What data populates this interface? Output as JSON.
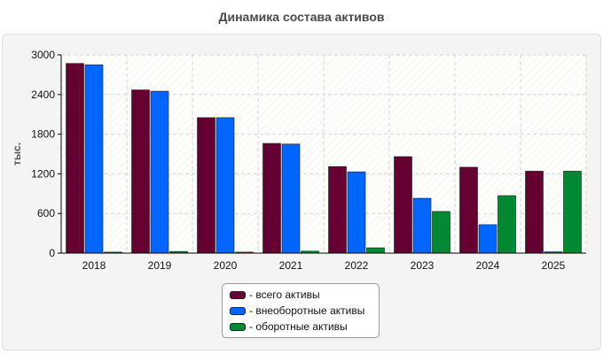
{
  "chart_data": {
    "type": "bar",
    "title": "Динамика состава активов",
    "ylabel": "тыс.",
    "xlabel": "",
    "ylim": [
      0,
      3000
    ],
    "yticks": [
      0,
      600,
      1200,
      1800,
      2400,
      3000
    ],
    "grid": true,
    "legend_position": "bottom-center",
    "categories": [
      "2018",
      "2019",
      "2020",
      "2021",
      "2022",
      "2023",
      "2024",
      "2025"
    ],
    "series": [
      {
        "name": "- всего активы",
        "color": "#660033",
        "values": [
          2870,
          2470,
          2050,
          1660,
          1310,
          1460,
          1300,
          1240
        ]
      },
      {
        "name": "- внеоборотные активы",
        "color": "#0066ff",
        "values": [
          2850,
          2450,
          2050,
          1650,
          1230,
          830,
          430,
          20
        ]
      },
      {
        "name": "- оборотные активы",
        "color": "#008833",
        "values": [
          15,
          25,
          15,
          30,
          80,
          630,
          870,
          1240
        ]
      }
    ]
  }
}
